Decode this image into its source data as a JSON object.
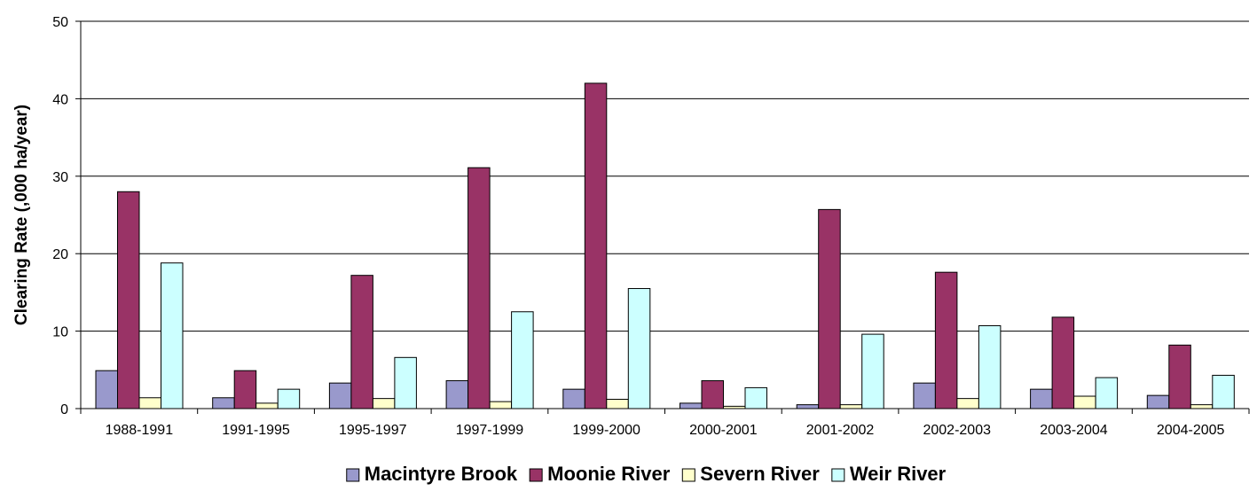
{
  "chart_data": {
    "type": "bar",
    "title": "",
    "xlabel": "",
    "ylabel": "Clearing Rate (,000 ha/year)",
    "ylim": [
      0,
      50
    ],
    "yticks": [
      "0",
      "10",
      "20",
      "30",
      "40",
      "50"
    ],
    "grid": "horizontal",
    "legend_position": "bottom",
    "categories": [
      "1988-1991",
      "1991-1995",
      "1995-1997",
      "1997-1999",
      "1999-2000",
      "2000-2001",
      "2001-2002",
      "2002-2003",
      "2003-2004",
      "2004-2005"
    ],
    "series": [
      {
        "name": "Macintyre Brook",
        "color": "#9999cc",
        "values": [
          4.9,
          1.4,
          3.3,
          3.6,
          2.5,
          0.7,
          0.5,
          3.3,
          2.5,
          1.7
        ]
      },
      {
        "name": "Moonie River",
        "color": "#993366",
        "values": [
          28.0,
          4.9,
          17.2,
          31.1,
          42.0,
          3.6,
          25.7,
          17.6,
          11.8,
          8.2
        ]
      },
      {
        "name": "Severn River",
        "color": "#ffffcc",
        "values": [
          1.4,
          0.7,
          1.3,
          0.9,
          1.2,
          0.3,
          0.5,
          1.3,
          1.6,
          0.5
        ]
      },
      {
        "name": "Weir River",
        "color": "#ccffff",
        "values": [
          18.8,
          2.5,
          6.6,
          12.5,
          15.5,
          2.7,
          9.6,
          10.7,
          4.0,
          4.3
        ]
      }
    ]
  }
}
